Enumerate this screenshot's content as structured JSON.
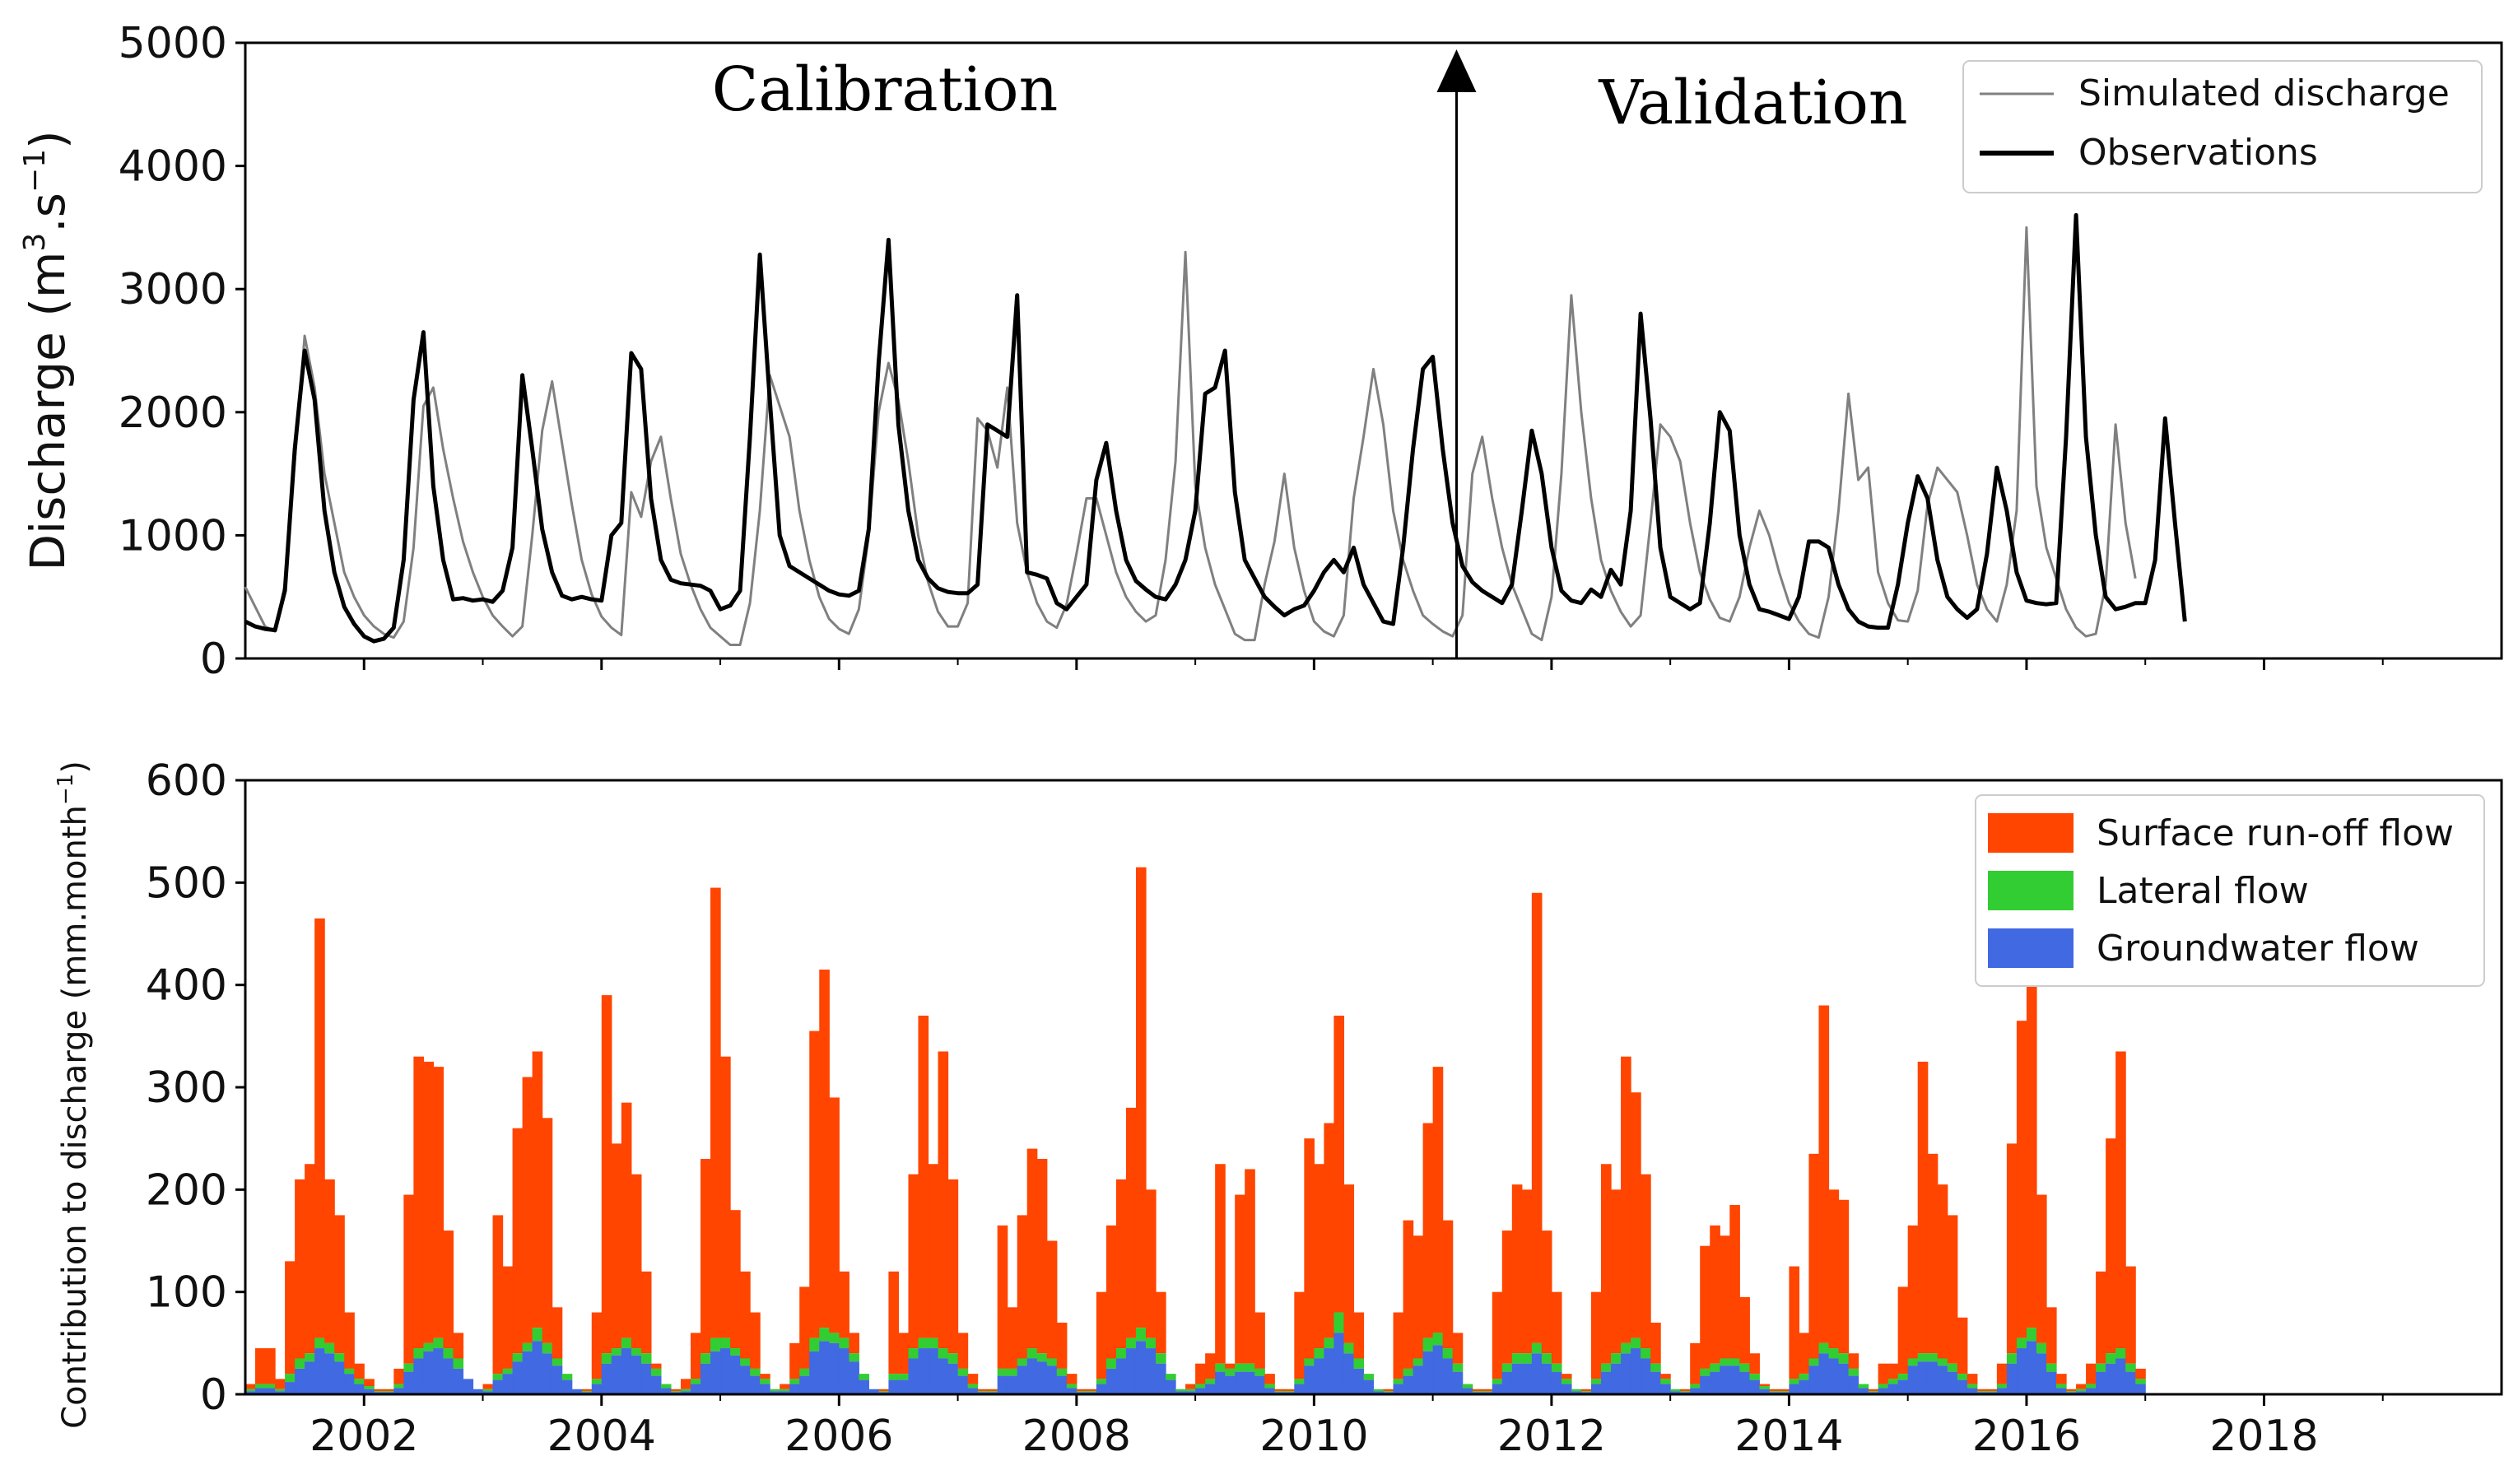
{
  "colors": {
    "simulated": "#808080",
    "observed": "#000000",
    "surface": "#FF4500",
    "lateral": "#32CD32",
    "groundwater": "#4169E1"
  },
  "chart_data": [
    {
      "type": "line",
      "ylabel_main": "Discharge (m",
      "ylabel_sup1": "3",
      "ylabel_mid": ".s",
      "ylabel_sup2": "−1",
      "ylabel_end": ")",
      "ylim": [
        0,
        5000
      ],
      "yticks": [
        "0",
        "1000",
        "2000",
        "3000",
        "4000",
        "5000"
      ],
      "xlim": [
        2001.0,
        2020.0
      ],
      "annotations": {
        "calibration": "Calibration",
        "validation": "Validation",
        "split_year": 2011.2
      },
      "legend": {
        "simulated": "Simulated discharge",
        "observed": "Observations"
      },
      "series": [
        {
          "name": "Simulated discharge",
          "x_start": 2001.0,
          "x_step": 0.0833333,
          "values": [
            580,
            420,
            260,
            220,
            600,
            1600,
            2620,
            2200,
            1500,
            1100,
            700,
            500,
            350,
            260,
            200,
            170,
            300,
            900,
            2050,
            2200,
            1700,
            1300,
            950,
            700,
            500,
            350,
            260,
            180,
            260,
            1000,
            1850,
            2250,
            1750,
            1250,
            800,
            520,
            340,
            250,
            190,
            1350,
            1150,
            1600,
            1800,
            1300,
            850,
            600,
            400,
            250,
            180,
            110,
            110,
            450,
            1200,
            2300,
            2050,
            1800,
            1200,
            800,
            500,
            320,
            240,
            200,
            400,
            1000,
            2000,
            2400,
            2100,
            1600,
            1000,
            620,
            380,
            260,
            260,
            450,
            1950,
            1850,
            1550,
            2200,
            1100,
            700,
            450,
            300,
            250,
            440,
            850,
            1300,
            1300,
            1000,
            700,
            500,
            380,
            300,
            350,
            800,
            1600,
            3300,
            1400,
            900,
            600,
            400,
            200,
            150,
            150,
            600,
            950,
            1500,
            900,
            550,
            300,
            220,
            180,
            350,
            1300,
            1800,
            2350,
            1900,
            1200,
            800,
            550,
            350,
            280,
            220,
            180,
            350,
            1500,
            1800,
            1300,
            900,
            600,
            400,
            200,
            150,
            500,
            1500,
            2950,
            2000,
            1300,
            800,
            550,
            380,
            260,
            350,
            1100,
            1900,
            1800,
            1600,
            1100,
            700,
            480,
            330,
            300,
            500,
            900,
            1200,
            1000,
            700,
            450,
            300,
            200,
            170,
            500,
            1200,
            2150,
            1450,
            1550,
            700,
            450,
            310,
            300,
            550,
            1250,
            1550,
            1450,
            1350,
            1000,
            600,
            400,
            300,
            600,
            1200,
            3500,
            1400,
            900,
            650,
            400,
            250,
            180,
            200,
            600,
            1900,
            1100,
            650
          ]
        },
        {
          "name": "Observations",
          "x_start": 2001.0,
          "x_step": 0.0833333,
          "values": [
            300,
            260,
            240,
            230,
            550,
            1700,
            2500,
            2100,
            1200,
            700,
            420,
            280,
            180,
            140,
            160,
            250,
            800,
            2100,
            2650,
            1400,
            800,
            480,
            490,
            470,
            480,
            460,
            550,
            900,
            2300,
            1700,
            1050,
            700,
            510,
            480,
            500,
            480,
            470,
            1000,
            1100,
            2480,
            2350,
            1300,
            800,
            640,
            610,
            600,
            590,
            550,
            400,
            430,
            550,
            1800,
            3280,
            2100,
            1000,
            750,
            700,
            650,
            600,
            550,
            520,
            510,
            550,
            1050,
            2400,
            3400,
            1900,
            1200,
            800,
            650,
            570,
            540,
            530,
            530,
            600,
            1900,
            1850,
            1800,
            2950,
            700,
            680,
            650,
            450,
            400,
            500,
            600,
            1450,
            1750,
            1200,
            800,
            630,
            560,
            500,
            480,
            600,
            800,
            1200,
            2150,
            2200,
            2500,
            1350,
            800,
            650,
            500,
            420,
            350,
            400,
            430,
            550,
            700,
            800,
            700,
            900,
            600,
            450,
            300,
            280,
            900,
            1700,
            2350,
            2450,
            1700,
            1100,
            750,
            620,
            550,
            500,
            450,
            600,
            1200,
            1850,
            1500,
            900,
            550,
            470,
            450,
            560,
            500,
            720,
            600,
            1200,
            2800,
            1950,
            900,
            500,
            450,
            400,
            450,
            1100,
            2000,
            1850,
            1000,
            600,
            400,
            380,
            350,
            320,
            500,
            950,
            950,
            900,
            600,
            400,
            300,
            260,
            250,
            250,
            600,
            1100,
            1480,
            1300,
            800,
            500,
            400,
            330,
            400,
            850,
            1550,
            1200,
            700,
            470,
            450,
            440,
            450,
            1800,
            3600,
            1800,
            1000,
            500,
            400,
            420,
            450,
            450,
            800,
            1950,
            1100,
            300
          ]
        }
      ]
    },
    {
      "type": "bar",
      "stacked": true,
      "ylabel_main": "Contribution to discharge (mm.month",
      "ylabel_sup": "−1",
      "ylabel_end": ")",
      "ylim": [
        0,
        600
      ],
      "yticks": [
        "0",
        "100",
        "200",
        "300",
        "400",
        "500",
        "600"
      ],
      "xlim": [
        2001.0,
        2020.0
      ],
      "xticks": [
        "2002",
        "2004",
        "2006",
        "2008",
        "2010",
        "2012",
        "2014",
        "2016",
        "2018"
      ],
      "legend": {
        "surface": "Surface run-off flow",
        "lateral": "Lateral flow",
        "groundwater": "Groundwater flow"
      },
      "x_start": 2001.0,
      "x_step": 0.0833333,
      "series": [
        {
          "name": "Total (surface + lateral + groundwater)",
          "values": [
            10,
            45,
            45,
            15,
            130,
            210,
            225,
            465,
            210,
            175,
            80,
            30,
            15,
            5,
            5,
            25,
            195,
            330,
            325,
            320,
            160,
            60,
            15,
            5,
            10,
            175,
            125,
            260,
            310,
            335,
            270,
            85,
            20,
            5,
            5,
            80,
            390,
            245,
            285,
            215,
            120,
            30,
            10,
            5,
            15,
            60,
            230,
            495,
            330,
            180,
            120,
            80,
            20,
            5,
            10,
            50,
            105,
            355,
            415,
            290,
            120,
            60,
            20,
            5,
            5,
            120,
            60,
            215,
            370,
            225,
            335,
            210,
            60,
            20,
            5,
            5,
            165,
            85,
            175,
            240,
            230,
            150,
            70,
            20,
            5,
            5,
            100,
            165,
            210,
            280,
            515,
            200,
            100,
            20,
            5,
            10,
            30,
            40,
            225,
            30,
            195,
            220,
            80,
            20,
            5,
            5,
            100,
            250,
            225,
            265,
            370,
            205,
            80,
            20,
            5,
            5,
            80,
            170,
            155,
            265,
            320,
            170,
            60,
            10,
            5,
            5,
            100,
            160,
            205,
            200,
            490,
            160,
            100,
            20,
            5,
            5,
            100,
            225,
            200,
            330,
            295,
            215,
            70,
            20,
            5,
            5,
            50,
            145,
            165,
            155,
            185,
            95,
            40,
            10,
            5,
            5,
            125,
            60,
            235,
            380,
            200,
            190,
            40,
            10,
            5,
            30,
            30,
            105,
            165,
            325,
            235,
            205,
            175,
            75,
            20,
            5,
            5,
            30,
            245,
            365,
            500,
            195,
            85,
            20,
            5,
            10,
            30,
            120,
            250,
            335,
            125,
            25
          ]
        },
        {
          "name": "Lateral flow (top of lateral)",
          "values": [
            5,
            10,
            10,
            5,
            20,
            35,
            40,
            55,
            50,
            40,
            25,
            15,
            8,
            3,
            3,
            10,
            30,
            45,
            50,
            55,
            45,
            35,
            20,
            8,
            5,
            20,
            25,
            40,
            50,
            65,
            50,
            35,
            20,
            8,
            3,
            15,
            40,
            45,
            55,
            45,
            40,
            25,
            10,
            3,
            5,
            15,
            40,
            55,
            55,
            45,
            35,
            25,
            15,
            5,
            5,
            15,
            25,
            55,
            65,
            60,
            55,
            40,
            20,
            8,
            3,
            20,
            20,
            45,
            55,
            55,
            45,
            40,
            25,
            10,
            3,
            3,
            25,
            25,
            35,
            45,
            40,
            35,
            25,
            10,
            3,
            3,
            15,
            35,
            45,
            55,
            65,
            55,
            40,
            20,
            5,
            5,
            10,
            15,
            30,
            25,
            30,
            30,
            25,
            10,
            3,
            3,
            15,
            35,
            45,
            55,
            80,
            50,
            35,
            20,
            5,
            3,
            15,
            25,
            35,
            55,
            60,
            45,
            30,
            10,
            3,
            3,
            15,
            30,
            40,
            40,
            50,
            40,
            30,
            15,
            5,
            3,
            15,
            30,
            40,
            50,
            55,
            45,
            30,
            15,
            5,
            3,
            10,
            25,
            30,
            35,
            35,
            30,
            20,
            8,
            3,
            3,
            15,
            20,
            35,
            50,
            45,
            40,
            25,
            10,
            3,
            10,
            15,
            20,
            35,
            40,
            40,
            35,
            30,
            20,
            10,
            3,
            3,
            10,
            40,
            55,
            65,
            50,
            30,
            10,
            3,
            5,
            10,
            30,
            40,
            45,
            30,
            15
          ]
        },
        {
          "name": "Groundwater flow",
          "values": [
            3,
            6,
            6,
            3,
            12,
            25,
            32,
            45,
            40,
            32,
            20,
            10,
            5,
            2,
            2,
            6,
            22,
            35,
            42,
            45,
            35,
            25,
            15,
            5,
            3,
            14,
            20,
            32,
            42,
            52,
            40,
            28,
            14,
            5,
            2,
            10,
            30,
            38,
            45,
            38,
            30,
            18,
            6,
            2,
            3,
            10,
            30,
            42,
            45,
            38,
            28,
            18,
            10,
            3,
            3,
            10,
            18,
            42,
            52,
            50,
            45,
            32,
            14,
            5,
            2,
            14,
            14,
            35,
            45,
            45,
            35,
            30,
            18,
            6,
            2,
            2,
            18,
            18,
            28,
            35,
            32,
            28,
            18,
            6,
            2,
            2,
            10,
            25,
            35,
            45,
            52,
            45,
            30,
            14,
            3,
            3,
            6,
            10,
            22,
            18,
            22,
            22,
            18,
            6,
            2,
            2,
            10,
            28,
            35,
            45,
            60,
            40,
            25,
            14,
            3,
            2,
            10,
            18,
            28,
            42,
            48,
            35,
            22,
            6,
            2,
            2,
            10,
            22,
            30,
            30,
            40,
            30,
            22,
            10,
            3,
            2,
            10,
            22,
            30,
            40,
            45,
            35,
            22,
            10,
            3,
            2,
            6,
            18,
            22,
            28,
            28,
            22,
            14,
            5,
            2,
            2,
            10,
            14,
            28,
            40,
            35,
            30,
            18,
            6,
            2,
            6,
            10,
            14,
            28,
            32,
            32,
            28,
            22,
            14,
            6,
            2,
            2,
            6,
            30,
            45,
            52,
            40,
            22,
            6,
            2,
            3,
            6,
            22,
            30,
            35,
            22,
            10
          ]
        }
      ]
    }
  ]
}
